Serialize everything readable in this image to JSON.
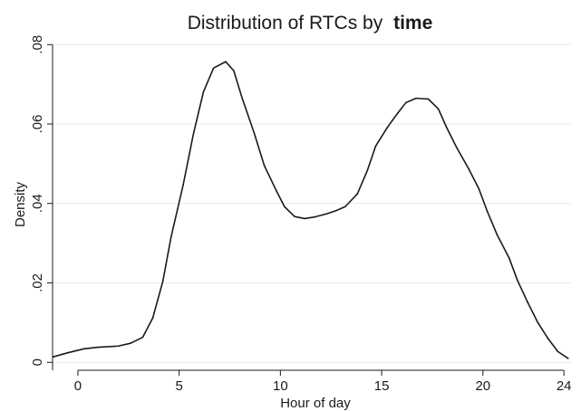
{
  "chart_data": {
    "type": "line",
    "title": "Distribution of RTCs by",
    "title_emphasis": "time",
    "xlabel": "Hour of day",
    "ylabel": "Density",
    "xlim": [
      -1.25,
      24.35
    ],
    "ylim": [
      -0.002,
      0.0812
    ],
    "x_ticks": [
      0,
      5,
      10,
      15,
      20,
      24
    ],
    "x_tick_labels": [
      "0",
      "5",
      "10",
      "15",
      "20",
      "24"
    ],
    "y_ticks": [
      0,
      0.02,
      0.04,
      0.06,
      0.08
    ],
    "y_tick_labels": [
      "0",
      ".02",
      ".04",
      ".06",
      ".08"
    ],
    "grid": "horizontal",
    "colors": {
      "line": "#1a1a1a",
      "grid": "#e4ebee",
      "axis": "#1a1a1a",
      "background": "#ffffff"
    },
    "series": [
      {
        "x": [
          -1.2,
          -0.5,
          0.3,
          1.0,
          2.0,
          2.6,
          3.2,
          3.7,
          4.2,
          4.6,
          5.2,
          5.7,
          6.2,
          6.7,
          7.3,
          7.7,
          8.1,
          8.7,
          9.2,
          9.8,
          10.2,
          10.7,
          11.2,
          11.7,
          12.3,
          12.8,
          13.2,
          13.8,
          14.3,
          14.7,
          15.3,
          15.8,
          16.2,
          16.7,
          17.3,
          17.8,
          18.2,
          18.7,
          19.3,
          19.8,
          20.2,
          20.7,
          21.3,
          21.7,
          22.2,
          22.7,
          23.2,
          23.7,
          24.2
        ],
        "y": [
          0.0014,
          0.0024,
          0.0034,
          0.0038,
          0.0041,
          0.0048,
          0.0063,
          0.0112,
          0.0205,
          0.0315,
          0.0447,
          0.0574,
          0.0681,
          0.0741,
          0.0757,
          0.0734,
          0.0667,
          0.0578,
          0.0496,
          0.0432,
          0.0392,
          0.0367,
          0.0362,
          0.0366,
          0.0374,
          0.0383,
          0.0392,
          0.0424,
          0.0484,
          0.0544,
          0.0593,
          0.0628,
          0.0654,
          0.0665,
          0.0663,
          0.0638,
          0.0592,
          0.0541,
          0.0487,
          0.0437,
          0.0382,
          0.0321,
          0.0262,
          0.0207,
          0.0152,
          0.0101,
          0.0061,
          0.0027,
          0.001
        ]
      }
    ]
  }
}
